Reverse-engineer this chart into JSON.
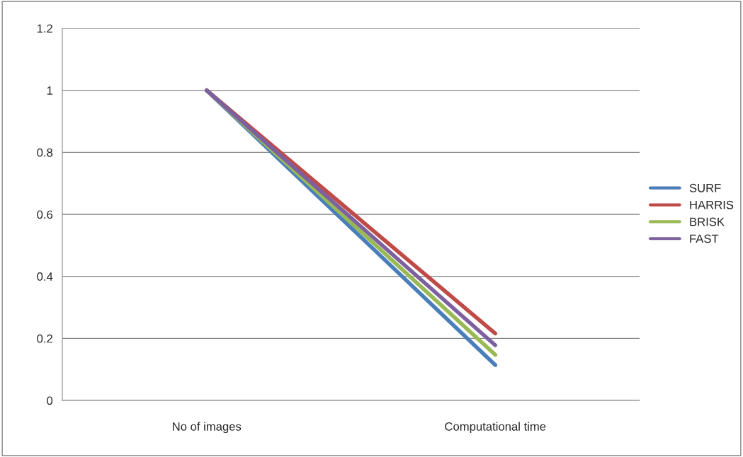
{
  "chart_data": {
    "type": "line",
    "categories": [
      "No of images",
      "Computational time"
    ],
    "series": [
      {
        "name": "SURF",
        "color": "#4a7ebb",
        "values": [
          1,
          0.114
        ]
      },
      {
        "name": "HARRIS",
        "color": "#be4b48",
        "values": [
          1,
          0.216
        ]
      },
      {
        "name": "BRISK",
        "color": "#98b954",
        "values": [
          1,
          0.147
        ]
      },
      {
        "name": "FAST",
        "color": "#7d60a0",
        "values": [
          1,
          0.178
        ]
      }
    ],
    "ylim": [
      0,
      1.2
    ],
    "yticks": [
      0,
      0.2,
      0.4,
      0.6,
      0.8,
      1,
      1.2
    ],
    "grid": "y",
    "legend": "right",
    "marker": "none",
    "line_style": "solid"
  }
}
